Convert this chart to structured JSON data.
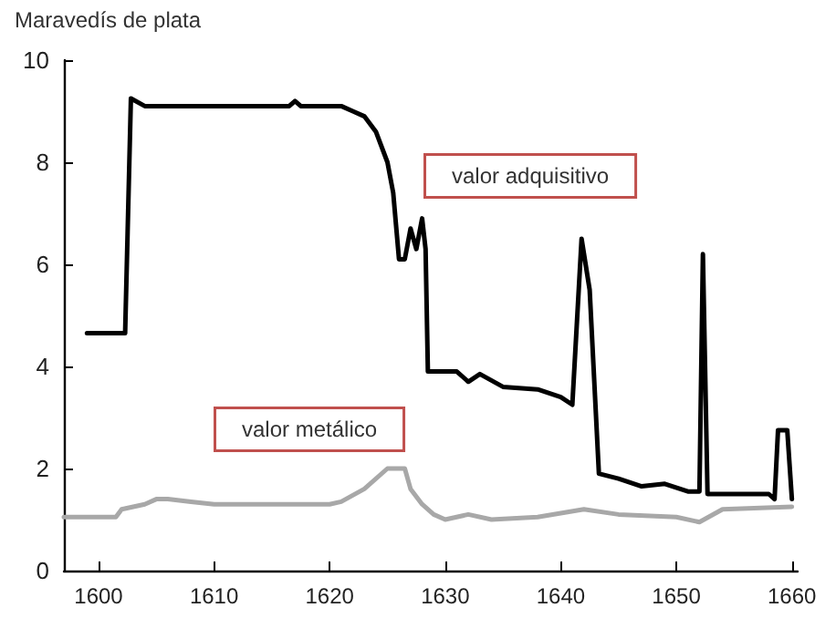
{
  "chart_data": {
    "type": "line",
    "ylabel": "Maravedís de plata",
    "xlim": [
      1597,
      1660.5
    ],
    "ylim": [
      0,
      10
    ],
    "xticks": [
      1600,
      1610,
      1620,
      1630,
      1640,
      1650,
      1660
    ],
    "yticks": [
      0,
      2,
      4,
      6,
      8,
      10
    ],
    "grid": false,
    "legend": false,
    "marker": "none",
    "line_style": "solid",
    "series": [
      {
        "name": "valor adquisitivo",
        "color": "#000000",
        "x": [
          1599,
          1602.3,
          1602.8,
          1604,
          1616.5,
          1617,
          1617.5,
          1621,
          1622,
          1623,
          1624,
          1625,
          1625.5,
          1626,
          1626.5,
          1627,
          1627.5,
          1628,
          1628.3,
          1628.5,
          1631,
          1632,
          1633,
          1635,
          1638,
          1640,
          1641,
          1641.8,
          1642.5,
          1643.3,
          1645,
          1647,
          1649,
          1651,
          1652,
          1652.3,
          1652.7,
          1658,
          1658.5,
          1658.8,
          1659.6,
          1660
        ],
        "values": [
          4.65,
          4.65,
          9.25,
          9.1,
          9.1,
          9.2,
          9.1,
          9.1,
          9.0,
          8.9,
          8.6,
          8.0,
          7.4,
          6.1,
          6.1,
          6.7,
          6.3,
          6.9,
          6.3,
          3.9,
          3.9,
          3.7,
          3.85,
          3.6,
          3.55,
          3.4,
          3.25,
          6.5,
          5.5,
          1.9,
          1.8,
          1.65,
          1.7,
          1.55,
          1.55,
          6.2,
          1.5,
          1.5,
          1.4,
          2.75,
          2.75,
          1.4
        ]
      },
      {
        "name": "valor metálico",
        "color": "#a8a8a8",
        "x": [
          1597,
          1601.5,
          1602,
          1604,
          1605,
          1606,
          1608,
          1610,
          1620,
          1621,
          1623,
          1625,
          1626.5,
          1627,
          1628,
          1629,
          1630,
          1632,
          1634,
          1638,
          1642,
          1645,
          1650,
          1652,
          1654,
          1660
        ],
        "values": [
          1.05,
          1.05,
          1.2,
          1.3,
          1.4,
          1.4,
          1.35,
          1.3,
          1.3,
          1.35,
          1.6,
          2.0,
          2.0,
          1.6,
          1.3,
          1.1,
          1.0,
          1.1,
          1.0,
          1.05,
          1.2,
          1.1,
          1.05,
          0.95,
          1.2,
          1.25
        ]
      }
    ]
  }
}
